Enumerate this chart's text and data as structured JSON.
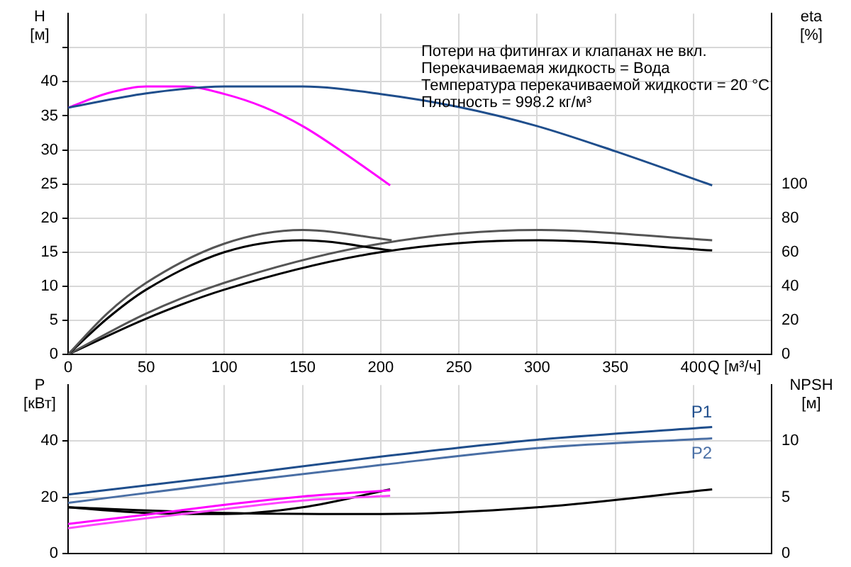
{
  "chart_data": [
    {
      "type": "line",
      "xlabel": "Q [м³/ч]",
      "ylabel": "H [м]",
      "y2label": "eta [%]",
      "xlim": [
        0,
        450
      ],
      "xticks": [
        0,
        50,
        100,
        150,
        200,
        250,
        300,
        350,
        400,
        {
          "value": 450,
          "label": null
        }
      ],
      "ylim": [
        0,
        50
      ],
      "yticks": [
        0,
        5,
        10,
        15,
        20,
        25,
        30,
        35,
        40,
        {
          "value": 45,
          "label": null
        }
      ],
      "y2lim": [
        0,
        200
      ],
      "y2ticks": [
        0,
        20,
        40,
        60,
        80,
        100
      ],
      "grid": true,
      "legend": false,
      "marker": "none",
      "line_style": "solid",
      "annotations": [
        "Потери на фитингах и клапанах не вкл.",
        "Перекачиваемая жидкость = Вода",
        "Температура перекачиваемой жидкости = 20 °C",
        "Плотность = 998.2 кг/м³"
      ],
      "series": [
        {
          "color": "#1f4e8c",
          "x": [
            0,
            50,
            100,
            150,
            200,
            250,
            300,
            350,
            412
          ],
          "values": [
            36.2,
            38.3,
            39.3,
            39.3,
            38.2,
            36.3,
            33.5,
            29.8,
            24.8
          ]
        },
        {
          "color": "#ff00ff",
          "x": [
            0,
            25,
            50,
            75,
            100,
            125,
            150,
            175,
            206
          ],
          "values": [
            36.2,
            38.3,
            39.3,
            39.3,
            38.2,
            36.3,
            33.5,
            29.8,
            24.8
          ]
        },
        {
          "color": "#555555",
          "axis": "y2",
          "x": [
            0,
            25,
            50,
            100,
            150,
            207
          ],
          "values": [
            0,
            24,
            42,
            65,
            73,
            67
          ]
        },
        {
          "color": "#000000",
          "axis": "y2",
          "x": [
            0,
            25,
            50,
            100,
            150,
            207
          ],
          "values": [
            0,
            21,
            38,
            60,
            67,
            61
          ]
        },
        {
          "color": "#555555",
          "axis": "y2",
          "x": [
            0,
            50,
            100,
            200,
            300,
            412
          ],
          "values": [
            0,
            24,
            42,
            65,
            73,
            67
          ]
        },
        {
          "color": "#000000",
          "axis": "y2",
          "x": [
            0,
            50,
            100,
            200,
            300,
            412
          ],
          "values": [
            0,
            21,
            38,
            60,
            67,
            61
          ]
        }
      ]
    },
    {
      "type": "line",
      "ylabel": "P [кВт]",
      "y2label": "NPSH [м]",
      "tick_labels": "y",
      "xlim": [
        0,
        450
      ],
      "xticks": [
        0,
        50,
        100,
        150,
        200,
        250,
        300,
        350,
        400,
        {
          "value": 450,
          "label": null
        }
      ],
      "ylim": [
        0,
        60
      ],
      "yticks": [
        0,
        20,
        40
      ],
      "y2lim": [
        0,
        15
      ],
      "y2ticks": [
        0,
        5,
        10
      ],
      "grid": true,
      "legend": false,
      "marker": "none",
      "line_style": "solid",
      "series": [
        {
          "name": "P1",
          "color": "#1f4e8c",
          "x": [
            0,
            100,
            200,
            300,
            412
          ],
          "values": [
            21,
            27.5,
            34.5,
            40.5,
            45
          ]
        },
        {
          "name": "P2",
          "color": "#4a6fa5",
          "x": [
            0,
            100,
            200,
            300,
            412
          ],
          "values": [
            18,
            25,
            31.5,
            37.5,
            41
          ]
        },
        {
          "color": "#ff00ff",
          "x": [
            0,
            50,
            100,
            150,
            206
          ],
          "values": [
            10.5,
            13.8,
            17.3,
            20.3,
            22.5
          ]
        },
        {
          "color": "#ff44ff",
          "x": [
            0,
            50,
            100,
            150,
            206
          ],
          "values": [
            9,
            12.5,
            15.8,
            18.8,
            20.5
          ]
        },
        {
          "color": "#000000",
          "axis": "y2",
          "x": [
            0,
            50,
            100,
            150,
            206
          ],
          "values": [
            4.1,
            3.6,
            3.5,
            4.1,
            5.7
          ]
        },
        {
          "color": "#000000",
          "axis": "y2",
          "x": [
            0,
            100,
            200,
            300,
            412
          ],
          "values": [
            4.1,
            3.6,
            3.5,
            4.1,
            5.7
          ]
        }
      ]
    }
  ]
}
